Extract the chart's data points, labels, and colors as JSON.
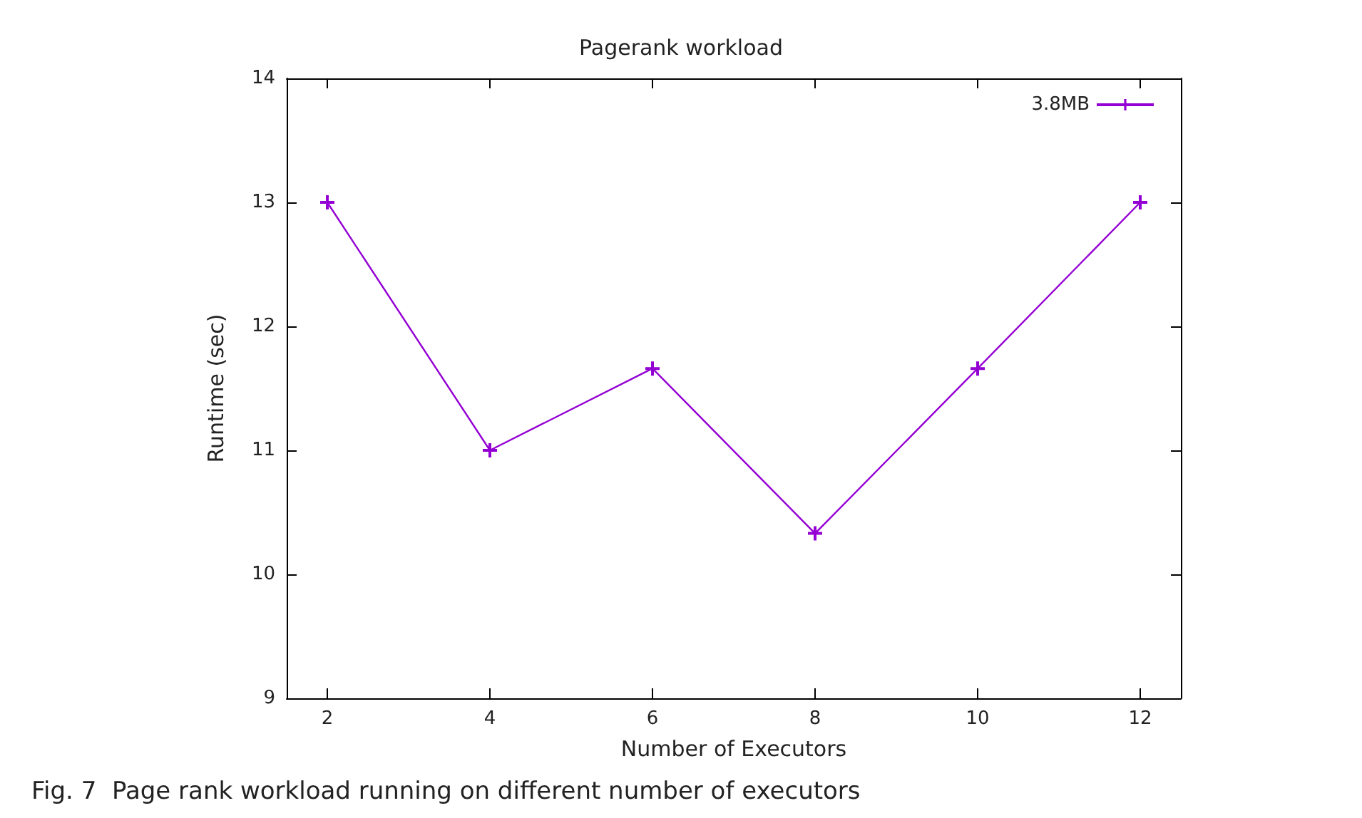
{
  "chart_data": {
    "type": "line",
    "title": "Pagerank workload",
    "xlabel": "Number of Executors",
    "ylabel": "Runtime (sec)",
    "x": [
      2,
      4,
      6,
      8,
      10,
      12
    ],
    "series": [
      {
        "name": "3.8MB",
        "color": "#9400d3",
        "values": [
          13,
          11,
          11.66,
          10.33,
          11.66,
          13
        ]
      }
    ],
    "xlim": [
      1.5,
      12.5
    ],
    "xticks": [
      2,
      4,
      6,
      8,
      10,
      12
    ],
    "ylim": [
      9,
      14
    ],
    "yticks": [
      9,
      10,
      11,
      12,
      13,
      14
    ],
    "grid": false,
    "legend": "top right",
    "marker": "cross",
    "line_style": "solid",
    "annotations": [
      "Fig. 7  Page rank workload running on different number of executors"
    ]
  }
}
